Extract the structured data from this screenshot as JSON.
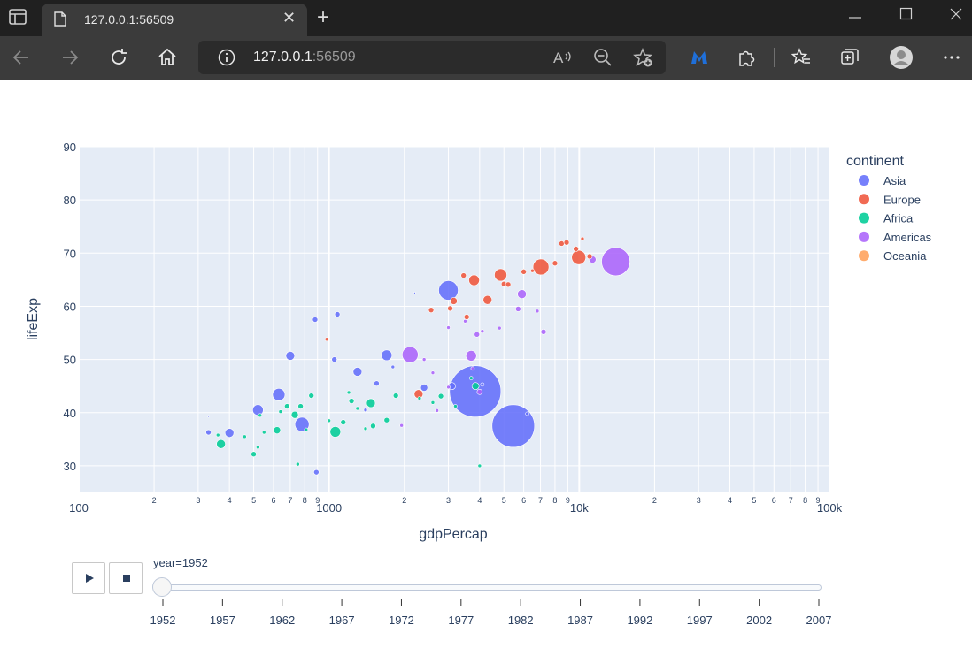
{
  "browser": {
    "tab_title": "127.0.0.1:56509",
    "address_host": "127.0.0.1",
    "address_port": ":56509"
  },
  "chart_data": {
    "type": "scatter",
    "x_scale": "log",
    "xlabel": "gdpPercap",
    "ylabel": "lifeExp",
    "xlim": [
      100,
      100000
    ],
    "ylim": [
      25,
      90
    ],
    "x_major_ticks": [
      "100",
      "1000",
      "10k",
      "100k"
    ],
    "x_minor_ticks": [
      "2",
      "3",
      "4",
      "5",
      "6",
      "7",
      "8",
      "9"
    ],
    "y_ticks": [
      30,
      40,
      50,
      60,
      70,
      80,
      90
    ],
    "legend_title": "continent",
    "legend_position": "right",
    "series": [
      {
        "name": "Asia",
        "color": "#636efa",
        "points": [
          [
            3840,
            44,
            29
          ],
          [
            5450,
            37.5,
            24
          ],
          [
            3000,
            63,
            11
          ],
          [
            1700,
            50.8,
            6
          ],
          [
            630,
            43.4,
            7
          ],
          [
            780,
            37.8,
            8
          ],
          [
            520,
            40.5,
            6
          ],
          [
            400,
            36.2,
            5
          ],
          [
            1300,
            47.7,
            5
          ],
          [
            1080,
            58.5,
            3
          ],
          [
            880,
            57.5,
            3
          ],
          [
            1050,
            50,
            3
          ],
          [
            1550,
            45.5,
            3
          ],
          [
            2400,
            44.7,
            4
          ],
          [
            3100,
            45,
            4
          ],
          [
            6200,
            39.8,
            2
          ],
          [
            4100,
            45.3,
            2
          ],
          [
            330,
            36.3,
            3
          ],
          [
            700,
            50.7,
            5
          ],
          [
            890,
            28.8,
            3
          ],
          [
            1800,
            48.6,
            2
          ],
          [
            2200,
            62.5,
            1
          ],
          [
            330,
            39.3,
            1
          ],
          [
            1400,
            40.5,
            2
          ]
        ]
      },
      {
        "name": "Europe",
        "color": "#EF553B",
        "points": [
          [
            7030,
            67.4,
            9
          ],
          [
            4850,
            65.9,
            7
          ],
          [
            9950,
            69.2,
            8
          ],
          [
            3800,
            64.9,
            6
          ],
          [
            4300,
            61.2,
            5
          ],
          [
            2280,
            43.5,
            5
          ],
          [
            2560,
            59.3,
            3
          ],
          [
            3150,
            61,
            4
          ],
          [
            3550,
            58,
            3
          ],
          [
            8500,
            71.8,
            3
          ],
          [
            6000,
            66.5,
            3
          ],
          [
            8000,
            68.1,
            3
          ],
          [
            3450,
            65.8,
            3
          ],
          [
            5000,
            64.2,
            3
          ],
          [
            8900,
            72,
            3
          ],
          [
            10300,
            72.7,
            2
          ],
          [
            3050,
            59.6,
            3
          ],
          [
            980,
            53.8,
            2
          ],
          [
            9700,
            70.8,
            3
          ],
          [
            6500,
            66.7,
            2
          ],
          [
            5200,
            64.1,
            3
          ],
          [
            11000,
            69.4,
            3
          ]
        ]
      },
      {
        "name": "Africa",
        "color": "#00cc96",
        "points": [
          [
            1060,
            36.4,
            6
          ],
          [
            1470,
            41.8,
            5
          ],
          [
            370,
            34.1,
            5
          ],
          [
            3850,
            45,
            4
          ],
          [
            620,
            36.7,
            4
          ],
          [
            850,
            43.2,
            3
          ],
          [
            2800,
            43.1,
            3
          ],
          [
            1140,
            38.2,
            3
          ],
          [
            1700,
            38.6,
            3
          ],
          [
            4000,
            30,
            2
          ],
          [
            730,
            39.6,
            4
          ],
          [
            770,
            41.2,
            3
          ],
          [
            1230,
            42.2,
            3
          ],
          [
            1850,
            43.2,
            3
          ],
          [
            500,
            32.2,
            3
          ],
          [
            550,
            36.3,
            2
          ],
          [
            530,
            39.5,
            2
          ],
          [
            1500,
            37.5,
            3
          ],
          [
            680,
            41.2,
            3
          ],
          [
            1200,
            43.8,
            2
          ],
          [
            3200,
            41.2,
            2
          ],
          [
            2300,
            42.7,
            2
          ],
          [
            640,
            40.2,
            2
          ],
          [
            460,
            35.5,
            2
          ],
          [
            360,
            35.8,
            2
          ],
          [
            750,
            30.3,
            2
          ],
          [
            1000,
            38.5,
            2
          ],
          [
            810,
            36.8,
            2
          ],
          [
            2600,
            41.9,
            2
          ],
          [
            1400,
            37,
            2
          ],
          [
            3700,
            46.5,
            2
          ],
          [
            1300,
            40.8,
            2
          ],
          [
            520,
            33.5,
            2
          ]
        ]
      },
      {
        "name": "Americas",
        "color": "#ab63fa",
        "points": [
          [
            13990,
            68.4,
            16
          ],
          [
            2110,
            50.9,
            9
          ],
          [
            3700,
            50.7,
            6
          ],
          [
            5900,
            62.3,
            5
          ],
          [
            11300,
            68.8,
            4
          ],
          [
            5700,
            59.5,
            3
          ],
          [
            3900,
            54.7,
            3
          ],
          [
            7200,
            55.2,
            3
          ],
          [
            3750,
            48.3,
            2
          ],
          [
            3000,
            44.8,
            2
          ],
          [
            2400,
            50,
            2
          ],
          [
            4000,
            43.9,
            3
          ],
          [
            2600,
            47.5,
            2
          ],
          [
            1950,
            37.6,
            2
          ],
          [
            4100,
            55.3,
            2
          ],
          [
            4800,
            55.9,
            2
          ],
          [
            3500,
            57.2,
            2
          ],
          [
            2700,
            40.4,
            2
          ],
          [
            6800,
            59.1,
            2
          ],
          [
            3000,
            56,
            2
          ]
        ]
      },
      {
        "name": "Oceania",
        "color": "#FFA15A",
        "points": []
      }
    ]
  },
  "slider": {
    "current_label": "year=1952",
    "ticks": [
      "1952",
      "1957",
      "1962",
      "1967",
      "1972",
      "1977",
      "1982",
      "1987",
      "1992",
      "1997",
      "2002",
      "2007"
    ]
  },
  "icons": {
    "play": "play-icon",
    "stop": "stop-icon"
  }
}
